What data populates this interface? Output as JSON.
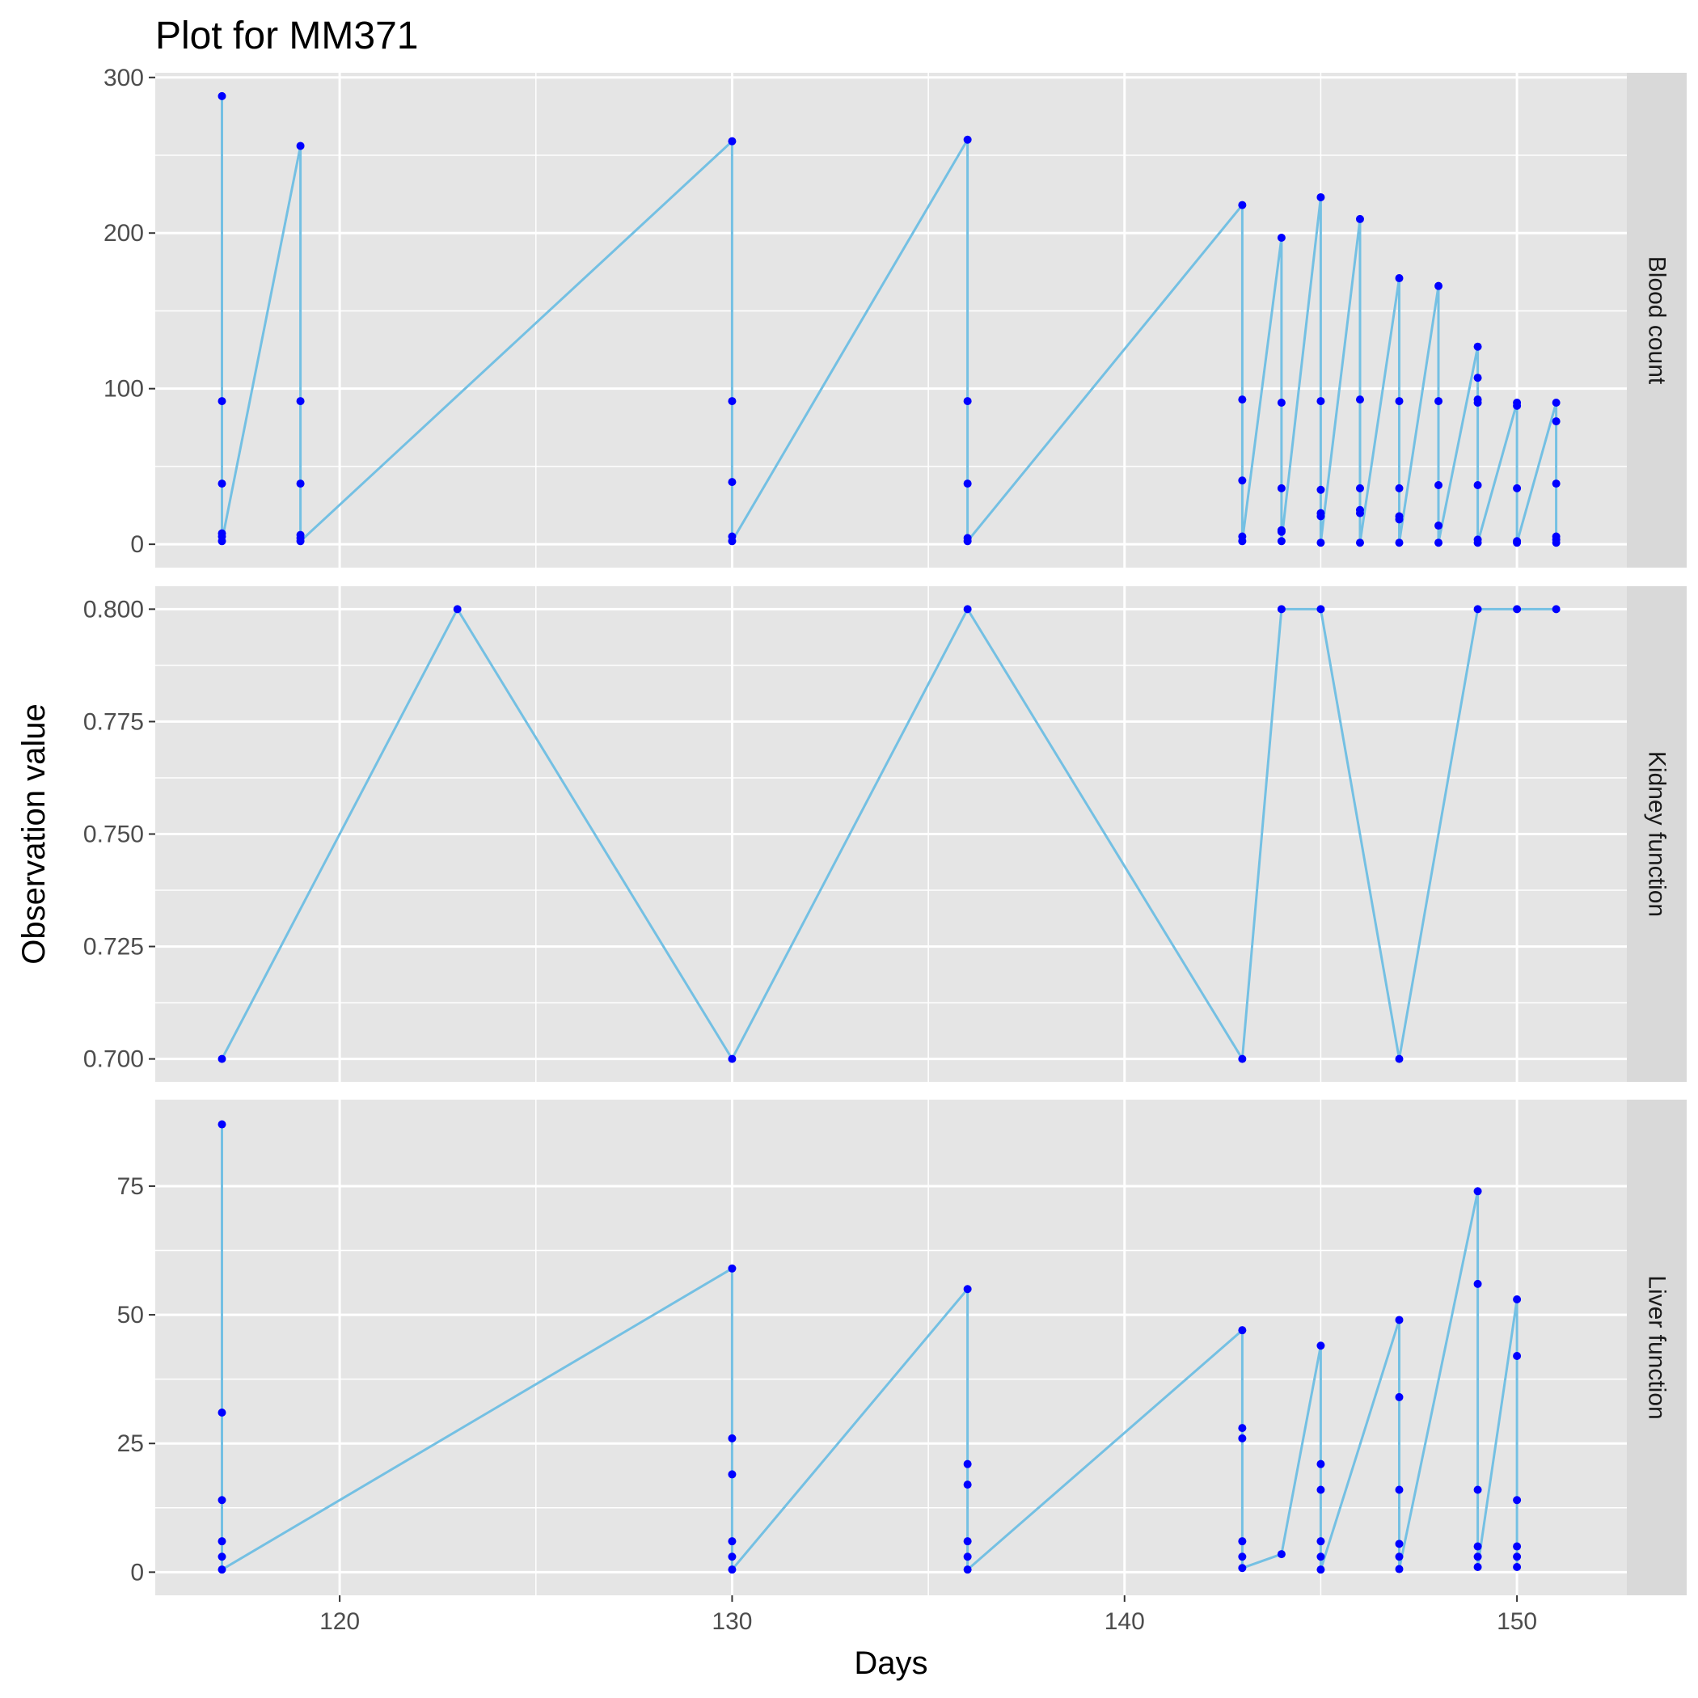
{
  "chart_data": {
    "type": "line",
    "title": "Plot for MM371",
    "xlabel": "Days",
    "ylabel": "Observation value",
    "xlim": [
      115.3,
      152.8
    ],
    "x_ticks": [
      120,
      130,
      140,
      150
    ],
    "x_tick_labels": [
      "120",
      "130",
      "140",
      "150"
    ],
    "grid": true,
    "legend": "none",
    "colors": {
      "panel_background": "#e5e5e5",
      "grid": "#ffffff",
      "strip_background": "#d9d9d9",
      "line": "#74c0e3",
      "point": "#0000ff",
      "tick": "#333333"
    },
    "facets": [
      {
        "label": "Blood count",
        "ylim": [
          -15,
          303
        ],
        "y_ticks": [
          0,
          100,
          200,
          300
        ],
        "y_tick_labels": [
          "0",
          "100",
          "200",
          "300"
        ],
        "points": [
          [
            117,
            288
          ],
          [
            117,
            92
          ],
          [
            117,
            39
          ],
          [
            117,
            7
          ],
          [
            117,
            5
          ],
          [
            117,
            2
          ],
          [
            119,
            256
          ],
          [
            119,
            92
          ],
          [
            119,
            39
          ],
          [
            119,
            6
          ],
          [
            119,
            4
          ],
          [
            119,
            2
          ],
          [
            130,
            259
          ],
          [
            130,
            92
          ],
          [
            130,
            40
          ],
          [
            130,
            5
          ],
          [
            130,
            2
          ],
          [
            136,
            260
          ],
          [
            136,
            92
          ],
          [
            136,
            39
          ],
          [
            136,
            4
          ],
          [
            136,
            2
          ],
          [
            143,
            218
          ],
          [
            143,
            93
          ],
          [
            143,
            41
          ],
          [
            143,
            5
          ],
          [
            143,
            2
          ],
          [
            144,
            197
          ],
          [
            144,
            91
          ],
          [
            144,
            36
          ],
          [
            144,
            9
          ],
          [
            144,
            8
          ],
          [
            144,
            2
          ],
          [
            145,
            223
          ],
          [
            145,
            92
          ],
          [
            145,
            35
          ],
          [
            145,
            20
          ],
          [
            145,
            18
          ],
          [
            145,
            1
          ],
          [
            146,
            209
          ],
          [
            146,
            93
          ],
          [
            146,
            36
          ],
          [
            146,
            22
          ],
          [
            146,
            20
          ],
          [
            146,
            1
          ],
          [
            147,
            171
          ],
          [
            147,
            92
          ],
          [
            147,
            36
          ],
          [
            147,
            18
          ],
          [
            147,
            16
          ],
          [
            147,
            1
          ],
          [
            148,
            166
          ],
          [
            148,
            92
          ],
          [
            148,
            38
          ],
          [
            148,
            12
          ],
          [
            148,
            1
          ],
          [
            149,
            127
          ],
          [
            149,
            107
          ],
          [
            149,
            93
          ],
          [
            149,
            91
          ],
          [
            149,
            38
          ],
          [
            149,
            3
          ],
          [
            149,
            1
          ],
          [
            150,
            91
          ],
          [
            150,
            89
          ],
          [
            150,
            36
          ],
          [
            150,
            2
          ],
          [
            150,
            1
          ],
          [
            151,
            91
          ],
          [
            151,
            79
          ],
          [
            151,
            39
          ],
          [
            151,
            5
          ],
          [
            151,
            3
          ],
          [
            151,
            1
          ]
        ]
      },
      {
        "label": "Kidney function",
        "ylim": [
          0.6949,
          0.8051
        ],
        "y_ticks": [
          0.7,
          0.725,
          0.75,
          0.775,
          0.8
        ],
        "y_tick_labels": [
          "0.700",
          "0.725",
          "0.750",
          "0.775",
          "0.800"
        ],
        "points": [
          [
            117,
            0.7
          ],
          [
            123,
            0.8
          ],
          [
            130,
            0.7
          ],
          [
            136,
            0.8
          ],
          [
            143,
            0.7
          ],
          [
            144,
            0.8
          ],
          [
            145,
            0.8
          ],
          [
            147,
            0.7
          ],
          [
            149,
            0.8
          ],
          [
            150,
            0.8
          ],
          [
            151,
            0.8
          ]
        ]
      },
      {
        "label": "Liver function",
        "ylim": [
          -4.5,
          91.8
        ],
        "y_ticks": [
          0,
          25,
          50,
          75
        ],
        "y_tick_labels": [
          "0",
          "25",
          "50",
          "75"
        ],
        "points": [
          [
            117,
            87
          ],
          [
            117,
            31
          ],
          [
            117,
            14
          ],
          [
            117,
            6
          ],
          [
            117,
            3
          ],
          [
            117,
            0.5
          ],
          [
            130,
            59
          ],
          [
            130,
            26
          ],
          [
            130,
            19
          ],
          [
            130,
            6
          ],
          [
            130,
            3
          ],
          [
            130,
            0.5
          ],
          [
            136,
            55
          ],
          [
            136,
            21
          ],
          [
            136,
            17
          ],
          [
            136,
            6
          ],
          [
            136,
            3
          ],
          [
            136,
            0.5
          ],
          [
            143,
            47
          ],
          [
            143,
            28
          ],
          [
            143,
            26
          ],
          [
            143,
            6
          ],
          [
            143,
            3
          ],
          [
            143,
            0.8
          ],
          [
            144,
            3.5
          ],
          [
            145,
            44
          ],
          [
            145,
            21
          ],
          [
            145,
            16
          ],
          [
            145,
            6
          ],
          [
            145,
            3
          ],
          [
            145,
            0.5
          ],
          [
            147,
            49
          ],
          [
            147,
            34
          ],
          [
            147,
            16
          ],
          [
            147,
            5.5
          ],
          [
            147,
            3
          ],
          [
            147,
            0.6
          ],
          [
            149,
            74
          ],
          [
            149,
            56
          ],
          [
            149,
            16
          ],
          [
            149,
            5
          ],
          [
            149,
            3
          ],
          [
            149,
            1
          ],
          [
            150,
            53
          ],
          [
            150,
            42
          ],
          [
            150,
            14
          ],
          [
            150,
            5
          ],
          [
            150,
            3
          ],
          [
            150,
            1
          ]
        ]
      }
    ]
  }
}
